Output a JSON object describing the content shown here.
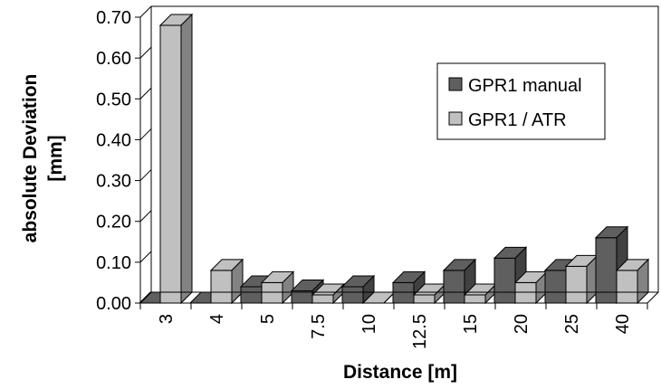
{
  "chart_data": {
    "type": "bar",
    "title": "",
    "xlabel": "Distance [m]",
    "ylabel_lines": [
      "absolute Deviation",
      "[mm]"
    ],
    "categories": [
      "3",
      "4",
      "5",
      "7.5",
      "10",
      "12.5",
      "15",
      "20",
      "25",
      "40"
    ],
    "series": [
      {
        "name": "GPR1 manual",
        "color": "#5f5f5f",
        "values": [
          0.0,
          0.0,
          0.04,
          0.03,
          0.04,
          0.05,
          0.08,
          0.11,
          0.08,
          0.16
        ]
      },
      {
        "name": "GPR1 / ATR",
        "color": "#c0c0c0",
        "values": [
          0.68,
          0.08,
          0.05,
          0.02,
          0.0,
          0.02,
          0.02,
          0.05,
          0.09,
          0.08
        ]
      }
    ],
    "yticks": [
      "0.00",
      "0.10",
      "0.20",
      "0.30",
      "0.40",
      "0.50",
      "0.60",
      "0.70"
    ],
    "ylim": [
      0,
      0.7
    ],
    "grid": false,
    "legend_position": "top-right",
    "style": "3d-bars"
  }
}
